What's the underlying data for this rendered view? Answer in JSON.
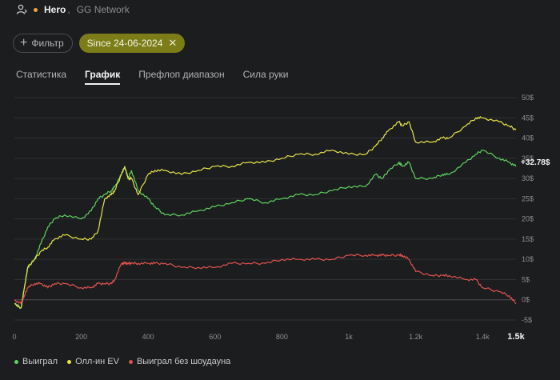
{
  "header": {
    "hero": "Hero",
    "separator": ",",
    "network": "GG Network"
  },
  "filters": {
    "filter_label": "Фильтр",
    "date_label": "Since 24-06-2024"
  },
  "tabs": [
    {
      "label": "Статистика",
      "active": false
    },
    {
      "label": "График",
      "active": true
    },
    {
      "label": "Префлоп диапазон",
      "active": false
    },
    {
      "label": "Сила руки",
      "active": false
    }
  ],
  "colors": {
    "won": "#5fd35f",
    "allin_ev": "#e8e34a",
    "won_no_showdown": "#e0524e",
    "accent": "#7c7d19"
  },
  "legend": [
    {
      "label": "Выиграл",
      "color": "#5fd35f"
    },
    {
      "label": "Олл-ин EV",
      "color": "#e8e34a"
    },
    {
      "label": "Выиграл без шоудауна",
      "color": "#e0524e"
    }
  ],
  "chart_data": {
    "type": "line",
    "ylim": [
      -5,
      50
    ],
    "yticks": [
      "50$",
      "45$",
      "40$",
      "35$",
      "30$",
      "25$",
      "20$",
      "15$",
      "10$",
      "5$",
      "0$",
      "-5$"
    ],
    "xticks": [
      "0",
      "200",
      "400",
      "600",
      "800",
      "1k",
      "1.2k",
      "1.4k"
    ],
    "xmax_label": "1.5k",
    "current_value_label": "+32.78$",
    "x": [
      0,
      20,
      30,
      40,
      60,
      80,
      100,
      120,
      150,
      200,
      230,
      250,
      270,
      290,
      300,
      320,
      330,
      340,
      350,
      370,
      400,
      420,
      450,
      500,
      550,
      600,
      650,
      700,
      750,
      800,
      850,
      900,
      950,
      1000,
      1050,
      1080,
      1100,
      1120,
      1150,
      1160,
      1180,
      1200,
      1250,
      1280,
      1300,
      1350,
      1380,
      1400,
      1450,
      1480,
      1500
    ],
    "series": [
      {
        "name": "Выиграл",
        "values": [
          -1,
          -2,
          3,
          8,
          10,
          14,
          18,
          20,
          21,
          20,
          22,
          25,
          26,
          27,
          28,
          31,
          33,
          30,
          32,
          27,
          25,
          23,
          21,
          21,
          22,
          23,
          24,
          25,
          24,
          25,
          26,
          26,
          27,
          28,
          28,
          31,
          30,
          32,
          34,
          33,
          34,
          30,
          30,
          31,
          31,
          34,
          36,
          37,
          35,
          34,
          33
        ]
      },
      {
        "name": "Олл-ин EV",
        "values": [
          -1,
          -2,
          3,
          8,
          10,
          12,
          13,
          15,
          16,
          15,
          15,
          17,
          25,
          26,
          27,
          31,
          33,
          30,
          30,
          26,
          31,
          32,
          32,
          31,
          32,
          33,
          33,
          34,
          34,
          35,
          36,
          36,
          37,
          36,
          36,
          38,
          40,
          42,
          44,
          43,
          44,
          39,
          39,
          40,
          40,
          43,
          45,
          45,
          44,
          43,
          42
        ]
      },
      {
        "name": "Выиграл без шоудауна",
        "values": [
          0,
          -1,
          1,
          3,
          4,
          4,
          3,
          4,
          4,
          3,
          3,
          4,
          4,
          4,
          5,
          9,
          9,
          9,
          9,
          9,
          9,
          9,
          9,
          8,
          8,
          8,
          9,
          9,
          9,
          10,
          10,
          10,
          10,
          11,
          11,
          11,
          11,
          11,
          11,
          11,
          10,
          7,
          6,
          6,
          6,
          5,
          5,
          3,
          2,
          1,
          -1
        ]
      }
    ]
  }
}
